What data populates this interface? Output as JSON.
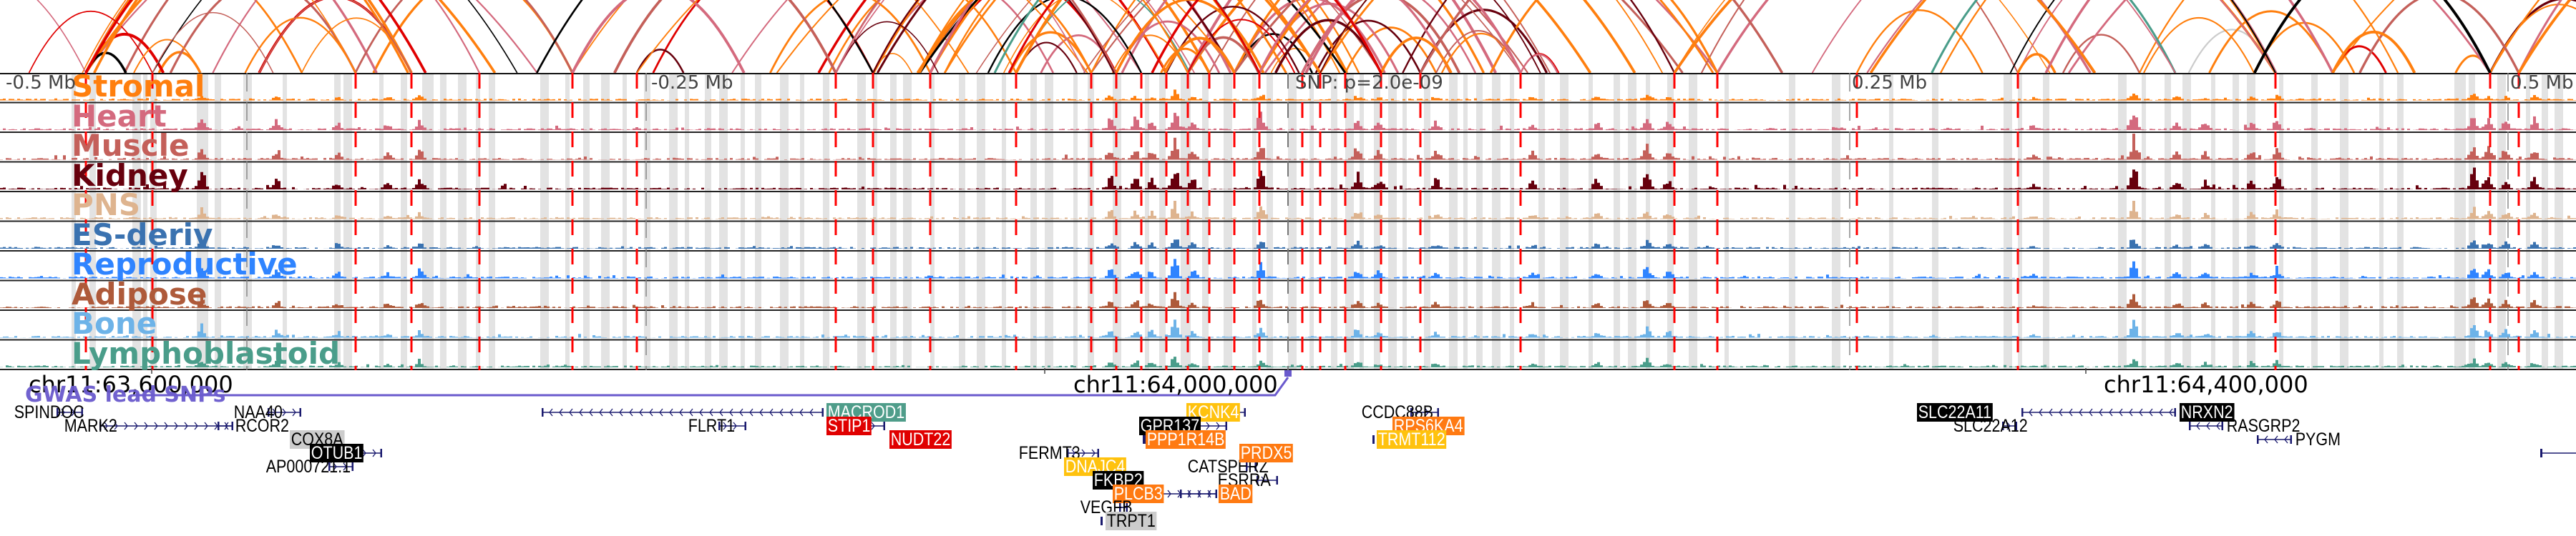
{
  "colors": {
    "Stromal": "#ff7f0e",
    "Heart": "#d46a7e",
    "Muscle": "#c4605a",
    "Kidney": "#67000d",
    "PNS": "#deb48f",
    "ES-deriv": "#3a72b0",
    "Reproductive": "#2f84ff",
    "Adipose": "#ae5a3a",
    "Bone": "#6db3e8",
    "Lymphoblastoid": "#4a9d8a",
    "snp_line": "#ff0000",
    "gwas": "#6a5acd",
    "gene_struct": "#1a1a6e",
    "highlight": "#e3e3e3"
  },
  "tracks": [
    {
      "name": "Stromal"
    },
    {
      "name": "Heart"
    },
    {
      "name": "Muscle"
    },
    {
      "name": "Kidney"
    },
    {
      "name": "PNS"
    },
    {
      "name": "ES-deriv"
    },
    {
      "name": "Reproductive"
    },
    {
      "name": "Adipose"
    },
    {
      "name": "Bone"
    },
    {
      "name": "Lymphoblastoid"
    }
  ],
  "scale_labels": {
    "left": "-0.5 Mb",
    "mid_left": "-0.25 Mb",
    "snp": "SNP: p=2.0e-09",
    "mid_right": "0.25 Mb",
    "right": "0.5 Mb"
  },
  "axis": {
    "tick1": "chr11:63,600,000",
    "tick2": "chr11:64,000,000",
    "tick3": "chr11:64,400,000"
  },
  "gwas": {
    "label": "GWAS lead SNPs"
  },
  "genes": [
    {
      "name": "SPINDOC",
      "style": "plain"
    },
    {
      "name": "MARK2",
      "style": "plain"
    },
    {
      "name": "NAA40",
      "style": "plain"
    },
    {
      "name": "RCOR2",
      "style": "plain"
    },
    {
      "name": "COX8A",
      "style": "grey"
    },
    {
      "name": "OTUB1",
      "style": "black"
    },
    {
      "name": "AP000721.1",
      "style": "plain"
    },
    {
      "name": "FLRT1",
      "style": "plain"
    },
    {
      "name": "MACROD1",
      "style": "teal"
    },
    {
      "name": "STIP1",
      "style": "red"
    },
    {
      "name": "NUDT22",
      "style": "red"
    },
    {
      "name": "FERMT3",
      "style": "plain"
    },
    {
      "name": "DNAJC4",
      "style": "yellow"
    },
    {
      "name": "FKBP2",
      "style": "black"
    },
    {
      "name": "PLCB3",
      "style": "orange"
    },
    {
      "name": "VEGFB",
      "style": "plain"
    },
    {
      "name": "TRPT1",
      "style": "grey"
    },
    {
      "name": "KCNK4",
      "style": "yellow"
    },
    {
      "name": "GPR137",
      "style": "black"
    },
    {
      "name": "PPP1R14B",
      "style": "orange"
    },
    {
      "name": "CATSPERZ",
      "style": "plain"
    },
    {
      "name": "ESRRA",
      "style": "plain"
    },
    {
      "name": "BAD",
      "style": "orange"
    },
    {
      "name": "CCDC88B",
      "style": "plain"
    },
    {
      "name": "RPS6KA4",
      "style": "orange"
    },
    {
      "name": "TRMT112",
      "style": "yellow"
    },
    {
      "name": "PRDX5",
      "style": "orange"
    },
    {
      "name": "SLC22A11",
      "style": "black"
    },
    {
      "name": "SLC22A12",
      "style": "plain"
    },
    {
      "name": "NRXN2",
      "style": "black"
    },
    {
      "name": "RASGRP2",
      "style": "plain"
    },
    {
      "name": "PYGM",
      "style": "plain"
    }
  ]
}
